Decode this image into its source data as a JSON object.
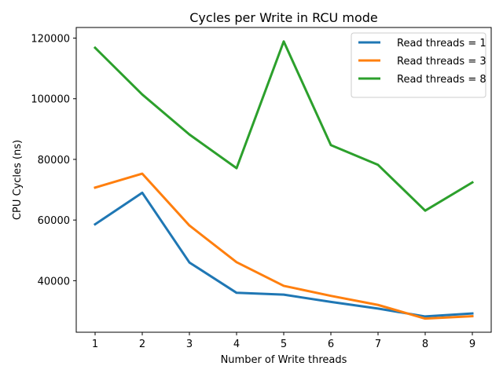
{
  "chart_data": {
    "type": "line",
    "title": "Cycles per Write in RCU mode",
    "xlabel": "Number of Write threads",
    "ylabel": "CPU Cycles (ns)",
    "x": [
      1,
      2,
      3,
      4,
      5,
      6,
      7,
      8,
      9
    ],
    "xlim": [
      0.6,
      9.4
    ],
    "ylim": [
      23000,
      123500
    ],
    "xticks": [
      "1",
      "2",
      "3",
      "4",
      "5",
      "6",
      "7",
      "8",
      "9"
    ],
    "yticks": [
      "40000",
      "60000",
      "80000",
      "100000",
      "120000"
    ],
    "grid": false,
    "legend_position": "top-right",
    "series": [
      {
        "name": "Read threads = 1",
        "color": "#1f77b4",
        "values": [
          58600,
          69000,
          46000,
          36000,
          35400,
          33000,
          30800,
          28200,
          29200
        ]
      },
      {
        "name": "Read threads = 3",
        "color": "#ff7f0e",
        "values": [
          70700,
          75300,
          58200,
          46100,
          38300,
          35000,
          32000,
          27500,
          28300
        ]
      },
      {
        "name": "Read threads = 8",
        "color": "#2ca02c",
        "values": [
          116800,
          101400,
          88200,
          77100,
          118900,
          84700,
          78200,
          63100,
          72400
        ]
      }
    ]
  }
}
